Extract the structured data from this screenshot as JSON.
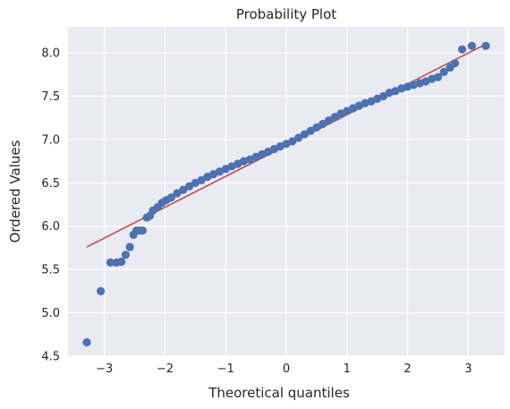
{
  "chart_data": {
    "type": "scatter",
    "title": "Probability Plot",
    "xlabel": "Theoretical quantiles",
    "ylabel": "Ordered Values",
    "xlim": [
      -3.6,
      3.6
    ],
    "ylim": [
      4.5,
      8.3
    ],
    "xticks": [
      -3,
      -2,
      -1,
      0,
      1,
      2,
      3
    ],
    "yticks": [
      4.5,
      5.0,
      5.5,
      6.0,
      6.5,
      7.0,
      7.5,
      8.0
    ],
    "grid": true,
    "series": [
      {
        "kind": "points",
        "color": "#4c72b0",
        "x": [
          -3.29,
          -3.06,
          -2.9,
          -2.8,
          -2.72,
          -2.65,
          -2.58,
          -2.52,
          -2.47,
          -2.42,
          -2.37,
          -2.3,
          -2.25,
          -2.2,
          -2.12,
          -2.05,
          -1.98,
          -1.9,
          -1.8,
          -1.7,
          -1.6,
          -1.5,
          -1.4,
          -1.3,
          -1.2,
          -1.1,
          -1.0,
          -0.9,
          -0.8,
          -0.7,
          -0.6,
          -0.5,
          -0.4,
          -0.3,
          -0.2,
          -0.1,
          0.0,
          0.1,
          0.2,
          0.3,
          0.4,
          0.5,
          0.6,
          0.7,
          0.8,
          0.9,
          1.0,
          1.1,
          1.2,
          1.3,
          1.4,
          1.5,
          1.6,
          1.7,
          1.8,
          1.9,
          2.0,
          2.1,
          2.2,
          2.3,
          2.4,
          2.5,
          2.6,
          2.7,
          2.78,
          2.9,
          3.06,
          3.29
        ],
        "y": [
          4.66,
          5.25,
          5.58,
          5.58,
          5.59,
          5.67,
          5.76,
          5.9,
          5.95,
          5.95,
          5.95,
          6.1,
          6.12,
          6.18,
          6.22,
          6.27,
          6.3,
          6.33,
          6.38,
          6.42,
          6.46,
          6.5,
          6.53,
          6.57,
          6.6,
          6.63,
          6.66,
          6.69,
          6.72,
          6.75,
          6.77,
          6.8,
          6.83,
          6.86,
          6.89,
          6.92,
          6.95,
          6.98,
          7.02,
          7.06,
          7.1,
          7.14,
          7.18,
          7.22,
          7.26,
          7.3,
          7.33,
          7.36,
          7.39,
          7.42,
          7.44,
          7.47,
          7.5,
          7.54,
          7.56,
          7.59,
          7.61,
          7.63,
          7.65,
          7.67,
          7.7,
          7.72,
          7.78,
          7.83,
          7.88,
          8.04,
          8.08,
          8.08
        ]
      },
      {
        "kind": "fit-line",
        "color": "#c44e52",
        "x": [
          -3.29,
          3.29
        ],
        "y": [
          5.76,
          8.1
        ]
      }
    ]
  }
}
